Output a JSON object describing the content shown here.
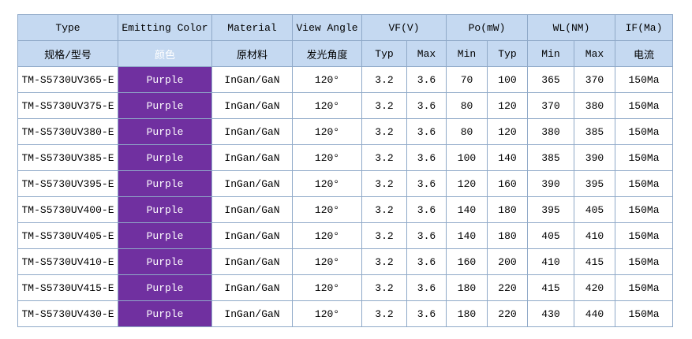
{
  "table": {
    "header": [
      "Type",
      "Emitting Color",
      "Material",
      "View Angle",
      "VF(V)",
      "Po(mW)",
      "WL(NM)",
      "IF(Ma)"
    ],
    "subheader": [
      "规格/型号",
      "颜色",
      "原材料",
      "发光角度",
      "Typ",
      "Max",
      "Min",
      "Typ",
      "Min",
      "Max",
      "电流"
    ],
    "rows": [
      [
        "TM-S5730UV365-E",
        "Purple",
        "InGan/GaN",
        "120°",
        "3.2",
        "3.6",
        "70",
        "100",
        "365",
        "370",
        "150Ma"
      ],
      [
        "TM-S5730UV375-E",
        "Purple",
        "InGan/GaN",
        "120°",
        "3.2",
        "3.6",
        "80",
        "120",
        "370",
        "380",
        "150Ma"
      ],
      [
        "TM-S5730UV380-E",
        "Purple",
        "InGan/GaN",
        "120°",
        "3.2",
        "3.6",
        "80",
        "120",
        "380",
        "385",
        "150Ma"
      ],
      [
        "TM-S5730UV385-E",
        "Purple",
        "InGan/GaN",
        "120°",
        "3.2",
        "3.6",
        "100",
        "140",
        "385",
        "390",
        "150Ma"
      ],
      [
        "TM-S5730UV395-E",
        "Purple",
        "InGan/GaN",
        "120°",
        "3.2",
        "3.6",
        "120",
        "160",
        "390",
        "395",
        "150Ma"
      ],
      [
        "TM-S5730UV400-E",
        "Purple",
        "InGan/GaN",
        "120°",
        "3.2",
        "3.6",
        "140",
        "180",
        "395",
        "405",
        "150Ma"
      ],
      [
        "TM-S5730UV405-E",
        "Purple",
        "InGan/GaN",
        "120°",
        "3.2",
        "3.6",
        "140",
        "180",
        "405",
        "410",
        "150Ma"
      ],
      [
        "TM-S5730UV410-E",
        "Purple",
        "InGan/GaN",
        "120°",
        "3.2",
        "3.6",
        "160",
        "200",
        "410",
        "415",
        "150Ma"
      ],
      [
        "TM-S5730UV415-E",
        "Purple",
        "InGan/GaN",
        "120°",
        "3.2",
        "3.6",
        "180",
        "220",
        "415",
        "420",
        "150Ma"
      ],
      [
        "TM-S5730UV430-E",
        "Purple",
        "InGan/GaN",
        "120°",
        "3.2",
        "3.6",
        "180",
        "220",
        "430",
        "440",
        "150Ma"
      ]
    ]
  }
}
